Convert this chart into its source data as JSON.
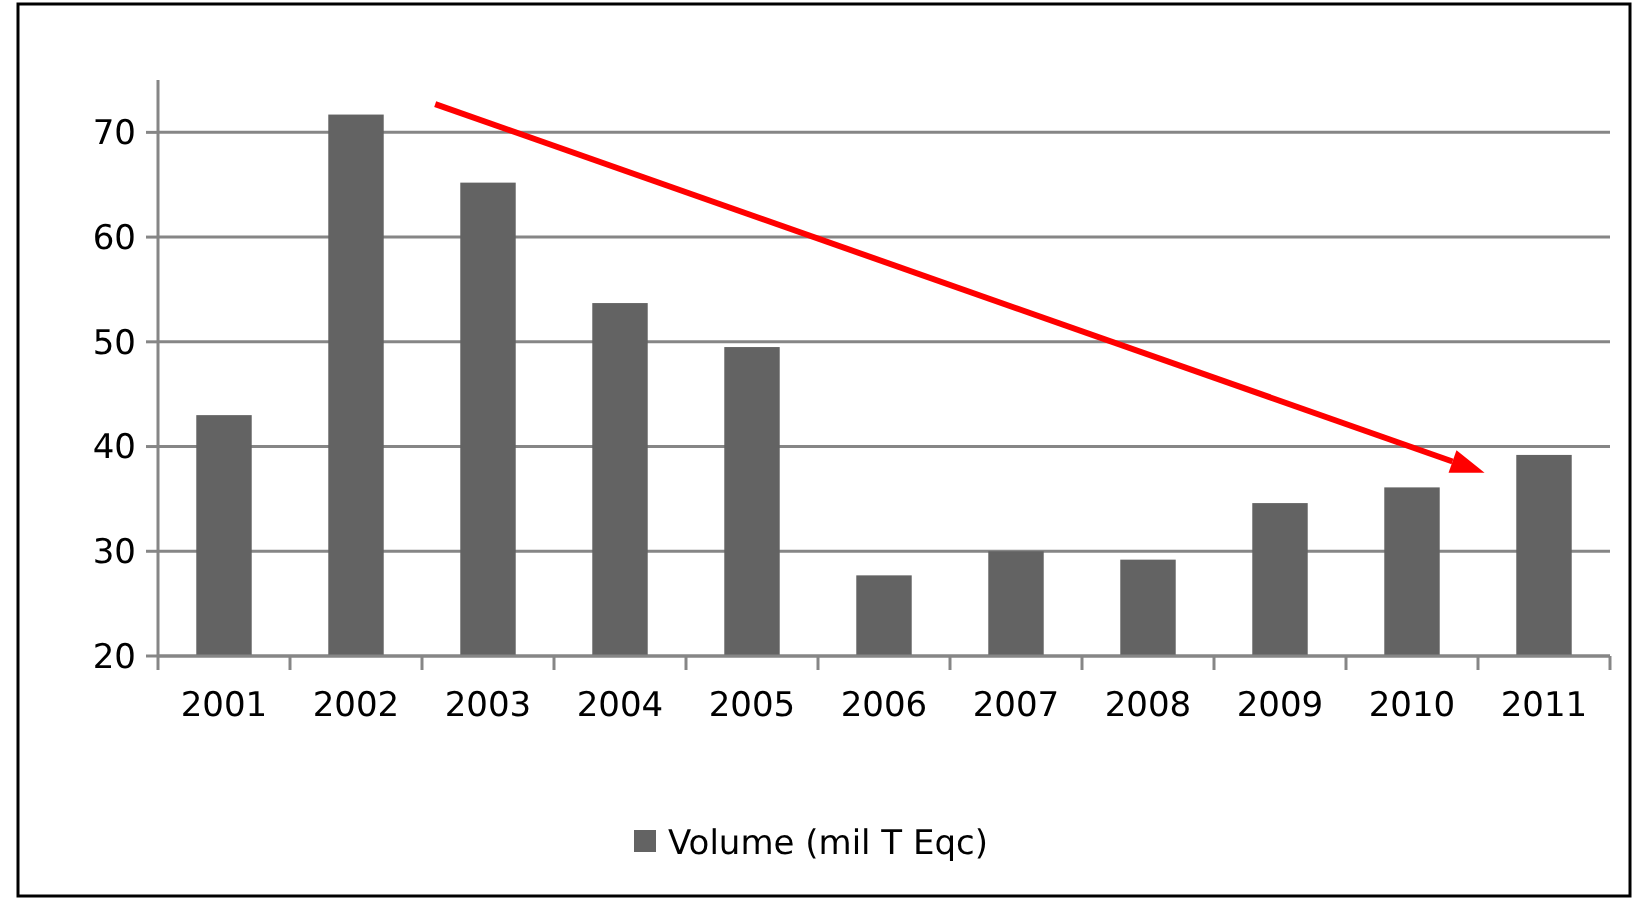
{
  "chart_data": {
    "type": "bar",
    "categories": [
      "2001",
      "2002",
      "2003",
      "2004",
      "2005",
      "2006",
      "2007",
      "2008",
      "2009",
      "2010",
      "2011"
    ],
    "series": [
      {
        "name": "Volume (mil T Eqc)",
        "color": "#636363",
        "values": [
          43.0,
          71.7,
          65.2,
          53.7,
          49.5,
          27.7,
          30.0,
          29.2,
          34.6,
          36.1,
          39.2
        ]
      }
    ],
    "ylim": [
      20,
      75
    ],
    "yticks": [
      20,
      30,
      40,
      50,
      60,
      70
    ],
    "grid": "y",
    "legend": "bottom"
  }
}
